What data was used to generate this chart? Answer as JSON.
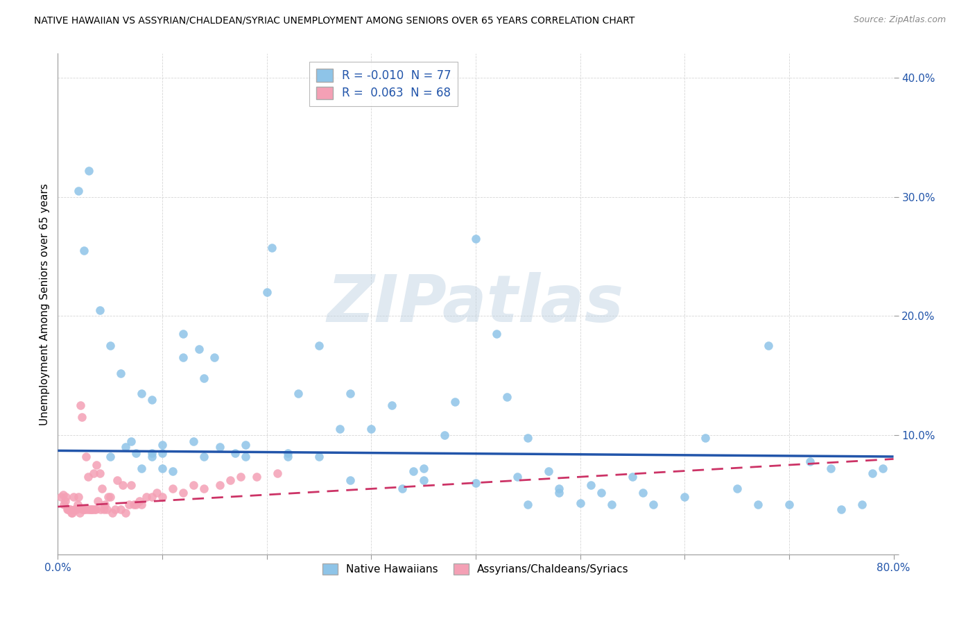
{
  "title": "NATIVE HAWAIIAN VS ASSYRIAN/CHALDEAN/SYRIAC UNEMPLOYMENT AMONG SENIORS OVER 65 YEARS CORRELATION CHART",
  "source_text": "Source: ZipAtlas.com",
  "ylabel": "Unemployment Among Seniors over 65 years",
  "xlim": [
    0,
    0.8
  ],
  "ylim": [
    0,
    0.42
  ],
  "xtick_vals": [
    0.0,
    0.1,
    0.2,
    0.3,
    0.4,
    0.5,
    0.6,
    0.7,
    0.8
  ],
  "xticklabels": [
    "0.0%",
    "",
    "",
    "",
    "",
    "",
    "",
    "",
    "80.0%"
  ],
  "ytick_vals": [
    0.0,
    0.1,
    0.2,
    0.3,
    0.4
  ],
  "yticklabels": [
    "",
    "10.0%",
    "20.0%",
    "30.0%",
    "40.0%"
  ],
  "blue_color": "#8EC4E8",
  "pink_color": "#F4A0B5",
  "blue_line_color": "#2255AA",
  "pink_line_color": "#CC3366",
  "R_blue": -0.01,
  "N_blue": 77,
  "R_pink": 0.063,
  "N_pink": 68,
  "watermark": "ZIPatlas",
  "legend_label_blue": "Native Hawaiians",
  "legend_label_pink": "Assyrians/Chaldeans/Syriacs",
  "blue_line_x0": 0.0,
  "blue_line_x1": 0.8,
  "blue_line_y0": 0.087,
  "blue_line_y1": 0.082,
  "pink_line_x0": 0.0,
  "pink_line_x1": 0.8,
  "pink_line_y0": 0.04,
  "pink_line_y1": 0.08,
  "blue_scatter_x": [
    0.02,
    0.025,
    0.04,
    0.05,
    0.06,
    0.065,
    0.07,
    0.075,
    0.08,
    0.09,
    0.09,
    0.1,
    0.1,
    0.11,
    0.12,
    0.13,
    0.135,
    0.14,
    0.15,
    0.155,
    0.17,
    0.18,
    0.2,
    0.205,
    0.22,
    0.23,
    0.25,
    0.27,
    0.28,
    0.3,
    0.32,
    0.34,
    0.35,
    0.37,
    0.38,
    0.4,
    0.42,
    0.43,
    0.44,
    0.45,
    0.47,
    0.48,
    0.5,
    0.51,
    0.52,
    0.53,
    0.55,
    0.56,
    0.57,
    0.6,
    0.62,
    0.65,
    0.67,
    0.68,
    0.7,
    0.72,
    0.74,
    0.75,
    0.77,
    0.78,
    0.79,
    0.03,
    0.05,
    0.08,
    0.09,
    0.1,
    0.12,
    0.14,
    0.18,
    0.22,
    0.25,
    0.28,
    0.33,
    0.35,
    0.4,
    0.45,
    0.48
  ],
  "blue_scatter_y": [
    0.305,
    0.255,
    0.205,
    0.175,
    0.152,
    0.09,
    0.095,
    0.085,
    0.135,
    0.085,
    0.13,
    0.085,
    0.072,
    0.07,
    0.185,
    0.095,
    0.172,
    0.148,
    0.165,
    0.09,
    0.085,
    0.092,
    0.22,
    0.257,
    0.085,
    0.135,
    0.175,
    0.105,
    0.135,
    0.105,
    0.125,
    0.07,
    0.072,
    0.1,
    0.128,
    0.06,
    0.185,
    0.132,
    0.065,
    0.042,
    0.07,
    0.052,
    0.043,
    0.058,
    0.052,
    0.042,
    0.065,
    0.052,
    0.042,
    0.048,
    0.098,
    0.055,
    0.042,
    0.175,
    0.042,
    0.078,
    0.072,
    0.038,
    0.042,
    0.068,
    0.072,
    0.322,
    0.082,
    0.072,
    0.082,
    0.092,
    0.165,
    0.082,
    0.082,
    0.082,
    0.082,
    0.062,
    0.055,
    0.062,
    0.265,
    0.098,
    0.055
  ],
  "pink_scatter_x": [
    0.003,
    0.005,
    0.006,
    0.007,
    0.008,
    0.009,
    0.01,
    0.011,
    0.012,
    0.013,
    0.014,
    0.015,
    0.016,
    0.017,
    0.018,
    0.019,
    0.02,
    0.021,
    0.022,
    0.023,
    0.024,
    0.025,
    0.026,
    0.027,
    0.028,
    0.029,
    0.03,
    0.031,
    0.032,
    0.033,
    0.034,
    0.035,
    0.036,
    0.037,
    0.038,
    0.04,
    0.041,
    0.042,
    0.044,
    0.045,
    0.047,
    0.048,
    0.05,
    0.052,
    0.055,
    0.057,
    0.06,
    0.062,
    0.065,
    0.068,
    0.07,
    0.073,
    0.075,
    0.078,
    0.08,
    0.085,
    0.09,
    0.095,
    0.1,
    0.11,
    0.12,
    0.13,
    0.14,
    0.155,
    0.165,
    0.175,
    0.19,
    0.21
  ],
  "pink_scatter_y": [
    0.048,
    0.05,
    0.042,
    0.045,
    0.048,
    0.038,
    0.038,
    0.038,
    0.038,
    0.035,
    0.035,
    0.048,
    0.038,
    0.038,
    0.038,
    0.042,
    0.048,
    0.035,
    0.125,
    0.115,
    0.038,
    0.038,
    0.038,
    0.082,
    0.038,
    0.065,
    0.038,
    0.038,
    0.038,
    0.038,
    0.068,
    0.038,
    0.038,
    0.075,
    0.045,
    0.068,
    0.038,
    0.055,
    0.038,
    0.042,
    0.038,
    0.048,
    0.048,
    0.035,
    0.038,
    0.062,
    0.038,
    0.058,
    0.035,
    0.042,
    0.058,
    0.042,
    0.042,
    0.045,
    0.042,
    0.048,
    0.048,
    0.052,
    0.048,
    0.055,
    0.052,
    0.058,
    0.055,
    0.058,
    0.062,
    0.065,
    0.065,
    0.068
  ]
}
